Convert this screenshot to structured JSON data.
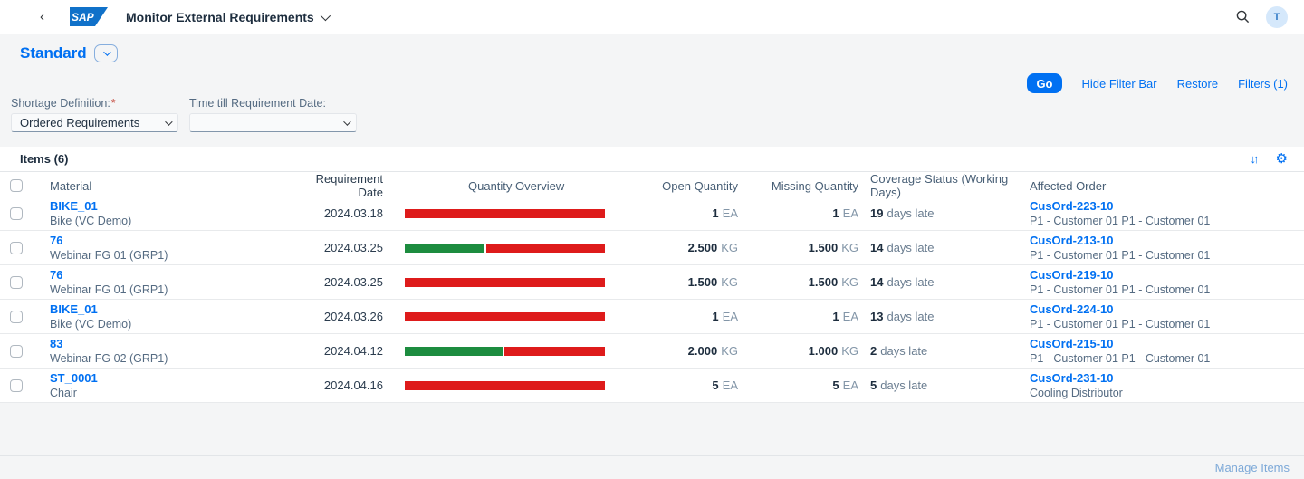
{
  "shell": {
    "title": "Monitor External Requirements",
    "avatar_initial": "T"
  },
  "variant": {
    "title": "Standard"
  },
  "filter_bar": {
    "go_label": "Go",
    "hide_filter_bar_label": "Hide Filter Bar",
    "restore_label": "Restore",
    "filters_label": "Filters (1)",
    "fields": [
      {
        "label": "Shortage Definition:",
        "required": "*",
        "value": "Ordered Requirements"
      },
      {
        "label": "Time till Requirement Date:",
        "required": "",
        "value": ""
      }
    ]
  },
  "table": {
    "title": "Items (6)",
    "columns": {
      "material": "Material",
      "requirement_date": "Requirement Date",
      "quantity_overview": "Quantity Overview",
      "open_quantity": "Open Quantity",
      "missing_quantity": "Missing Quantity",
      "coverage_status": "Coverage Status (Working Days)",
      "affected_order": "Affected Order"
    },
    "rows": [
      {
        "material": "BIKE_01",
        "material_desc": "Bike (VC Demo)",
        "date": "2024.03.18",
        "bar": {
          "green_pct": 0,
          "red_pct": 100
        },
        "open_qty": "1",
        "open_unit": "EA",
        "missing_qty": "1",
        "missing_unit": "EA",
        "coverage_value": "19",
        "coverage_text": "days late",
        "order": "CusOrd-223-10",
        "order_desc": "P1 - Customer 01 P1 - Customer 01"
      },
      {
        "material": "76",
        "material_desc": "Webinar FG 01 (GRP1)",
        "date": "2024.03.25",
        "bar": {
          "green_pct": 40,
          "red_pct": 59
        },
        "open_qty": "2.500",
        "open_unit": "KG",
        "missing_qty": "1.500",
        "missing_unit": "KG",
        "coverage_value": "14",
        "coverage_text": "days late",
        "order": "CusOrd-213-10",
        "order_desc": "P1 - Customer 01 P1 - Customer 01"
      },
      {
        "material": "76",
        "material_desc": "Webinar FG 01 (GRP1)",
        "date": "2024.03.25",
        "bar": {
          "green_pct": 0,
          "red_pct": 100
        },
        "open_qty": "1.500",
        "open_unit": "KG",
        "missing_qty": "1.500",
        "missing_unit": "KG",
        "coverage_value": "14",
        "coverage_text": "days late",
        "order": "CusOrd-219-10",
        "order_desc": "P1 - Customer 01 P1 - Customer 01"
      },
      {
        "material": "BIKE_01",
        "material_desc": "Bike (VC Demo)",
        "date": "2024.03.26",
        "bar": {
          "green_pct": 0,
          "red_pct": 100
        },
        "open_qty": "1",
        "open_unit": "EA",
        "missing_qty": "1",
        "missing_unit": "EA",
        "coverage_value": "13",
        "coverage_text": "days late",
        "order": "CusOrd-224-10",
        "order_desc": "P1 - Customer 01 P1 - Customer 01"
      },
      {
        "material": "83",
        "material_desc": "Webinar FG 02 (GRP1)",
        "date": "2024.04.12",
        "bar": {
          "green_pct": 49,
          "red_pct": 50
        },
        "open_qty": "2.000",
        "open_unit": "KG",
        "missing_qty": "1.000",
        "missing_unit": "KG",
        "coverage_value": "2",
        "coverage_text": "days late",
        "order": "CusOrd-215-10",
        "order_desc": "P1 - Customer 01 P1 - Customer 01"
      },
      {
        "material": "ST_0001",
        "material_desc": "Chair",
        "date": "2024.04.16",
        "bar": {
          "green_pct": 0,
          "red_pct": 100
        },
        "open_qty": "5",
        "open_unit": "EA",
        "missing_qty": "5",
        "missing_unit": "EA",
        "coverage_value": "5",
        "coverage_text": "days late",
        "order": "CusOrd-231-10",
        "order_desc": "Cooling Distributor"
      }
    ]
  },
  "footer": {
    "manage_items": "Manage Items"
  },
  "colors": {
    "accent": "#0070f2",
    "negative": "#de1b1b",
    "positive": "#1d8c3f"
  }
}
